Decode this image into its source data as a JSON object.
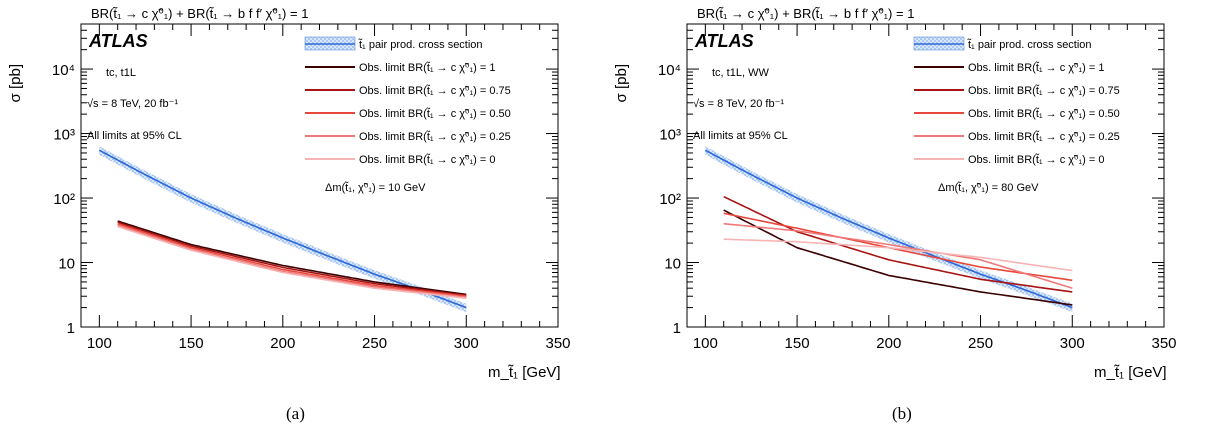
{
  "panels": [
    {
      "id": "a",
      "caption": "(a)",
      "header": "BR(t̃₁ → c χ̃⁰₁) + BR(t̃₁ → b f f′ χ̃⁰₁) = 1",
      "experiment": "ATLAS",
      "info": [
        "tc, t1L",
        "√s = 8 TeV, 20 fb⁻¹",
        "All limits at 95% CL"
      ],
      "delta_m": "Δm(t̃₁, χ̃⁰₁) = 10 GeV"
    },
    {
      "id": "b",
      "caption": "(b)",
      "header": "BR(t̃₁ → c χ̃⁰₁) + BR(t̃₁ → b f f′ χ̃⁰₁) = 1",
      "experiment": "ATLAS",
      "info": [
        "tc, t1L, WW",
        "√s = 8 TeV, 20 fb⁻¹",
        "All limits at 95% CL"
      ],
      "delta_m": "Δm(t̃₁, χ̃⁰₁) = 80 GeV"
    }
  ],
  "legend": {
    "entries": [
      {
        "label": "t̃₁ pair prod. cross section",
        "color": "#5b8fe0",
        "kind": "band"
      },
      {
        "label": "Obs. limit BR(t̃₁ → c χ̃⁰₁) = 1",
        "color": "#3b0000",
        "kind": "line"
      },
      {
        "label": "Obs. limit BR(t̃₁ → c χ̃⁰₁) = 0.75",
        "color": "#a81414",
        "kind": "line"
      },
      {
        "label": "Obs. limit BR(t̃₁ → c χ̃⁰₁) = 0.50",
        "color": "#e8483c",
        "kind": "line"
      },
      {
        "label": "Obs. limit BR(t̃₁ → c χ̃⁰₁) = 0.25",
        "color": "#f07878",
        "kind": "line"
      },
      {
        "label": "Obs. limit BR(t̃₁ → c χ̃⁰₁) = 0",
        "color": "#f6b4b4",
        "kind": "line"
      }
    ]
  },
  "chart_data": [
    {
      "type": "line",
      "panel": "a",
      "xlabel": "m_t̃₁ [GeV]",
      "ylabel": "σ [pb]",
      "xlim": [
        90,
        350
      ],
      "ylim": [
        1,
        50000
      ],
      "log_y": true,
      "x_ticks": [
        100,
        150,
        200,
        250,
        300,
        350
      ],
      "y_ticks": [
        {
          "v": 1,
          "t": "1"
        },
        {
          "v": 10,
          "t": "10"
        },
        {
          "v": 100,
          "t": "10²"
        },
        {
          "v": 1000,
          "t": "10³"
        },
        {
          "v": 10000,
          "t": "10⁴"
        }
      ],
      "series": [
        {
          "name": "t̃₁ pair prod. cross section",
          "kind": "band",
          "x": [
            100,
            125,
            150,
            175,
            200,
            225,
            250,
            275,
            300
          ],
          "y": [
            550,
            230,
            100,
            48,
            24,
            12.5,
            6.6,
            3.7,
            2.0
          ],
          "rel_unc": 0.15
        },
        {
          "name": "Obs. limit BR(t̃₁ → c χ̃⁰₁) = 1",
          "x": [
            110,
            150,
            200,
            250,
            300
          ],
          "y": [
            44,
            19,
            9.0,
            5.0,
            3.2
          ]
        },
        {
          "name": "Obs. limit BR(t̃₁ → c χ̃⁰₁) = 0.75",
          "x": [
            110,
            150,
            200,
            250,
            300
          ],
          "y": [
            42,
            18,
            8.4,
            4.7,
            3.1
          ]
        },
        {
          "name": "Obs. limit BR(t̃₁ → c χ̃⁰₁) = 0.50",
          "x": [
            110,
            150,
            200,
            250,
            300
          ],
          "y": [
            40,
            17,
            7.8,
            4.4,
            3.0
          ]
        },
        {
          "name": "Obs. limit BR(t̃₁ → c χ̃⁰₁) = 0.25",
          "x": [
            110,
            150,
            200,
            250,
            300
          ],
          "y": [
            38,
            16,
            7.3,
            4.2,
            2.9
          ]
        },
        {
          "name": "Obs. limit BR(t̃₁ → c χ̃⁰₁) = 0",
          "x": [
            110,
            150,
            200,
            250,
            300
          ],
          "y": [
            36,
            15.5,
            7.0,
            4.0,
            2.8
          ]
        }
      ]
    },
    {
      "type": "line",
      "panel": "b",
      "xlabel": "m_t̃₁ [GeV]",
      "ylabel": "σ [pb]",
      "xlim": [
        90,
        350
      ],
      "ylim": [
        1,
        50000
      ],
      "log_y": true,
      "x_ticks": [
        100,
        150,
        200,
        250,
        300,
        350
      ],
      "y_ticks": [
        {
          "v": 1,
          "t": "1"
        },
        {
          "v": 10,
          "t": "10"
        },
        {
          "v": 100,
          "t": "10²"
        },
        {
          "v": 1000,
          "t": "10³"
        },
        {
          "v": 10000,
          "t": "10⁴"
        }
      ],
      "series": [
        {
          "name": "t̃₁ pair prod. cross section",
          "kind": "band",
          "x": [
            100,
            125,
            150,
            175,
            200,
            225,
            250,
            275,
            300
          ],
          "y": [
            550,
            230,
            100,
            48,
            24,
            12.5,
            6.6,
            3.7,
            2.0
          ],
          "rel_unc": 0.15
        },
        {
          "name": "Obs. limit BR(t̃₁ → c χ̃⁰₁) = 1",
          "x": [
            110,
            150,
            200,
            250,
            300
          ],
          "y": [
            65,
            17,
            6.3,
            3.5,
            2.2
          ]
        },
        {
          "name": "Obs. limit BR(t̃₁ → c χ̃⁰₁) = 0.75",
          "x": [
            110,
            150,
            200,
            250,
            300
          ],
          "y": [
            105,
            30,
            11,
            5.5,
            3.5
          ]
        },
        {
          "name": "Obs. limit BR(t̃₁ → c χ̃⁰₁) = 0.50",
          "x": [
            110,
            150,
            200,
            250,
            300
          ],
          "y": [
            58,
            34,
            17,
            8.5,
            5.3
          ]
        },
        {
          "name": "Obs. limit BR(t̃₁ → c χ̃⁰₁) = 0.25",
          "x": [
            110,
            150,
            200,
            250,
            300
          ],
          "y": [
            40,
            31,
            19,
            11,
            4.0
          ]
        },
        {
          "name": "Obs. limit BR(t̃₁ → c χ̃⁰₁) = 0",
          "x": [
            110,
            150,
            200,
            250,
            300
          ],
          "y": [
            23,
            21,
            17,
            12,
            7.5
          ]
        }
      ]
    }
  ]
}
